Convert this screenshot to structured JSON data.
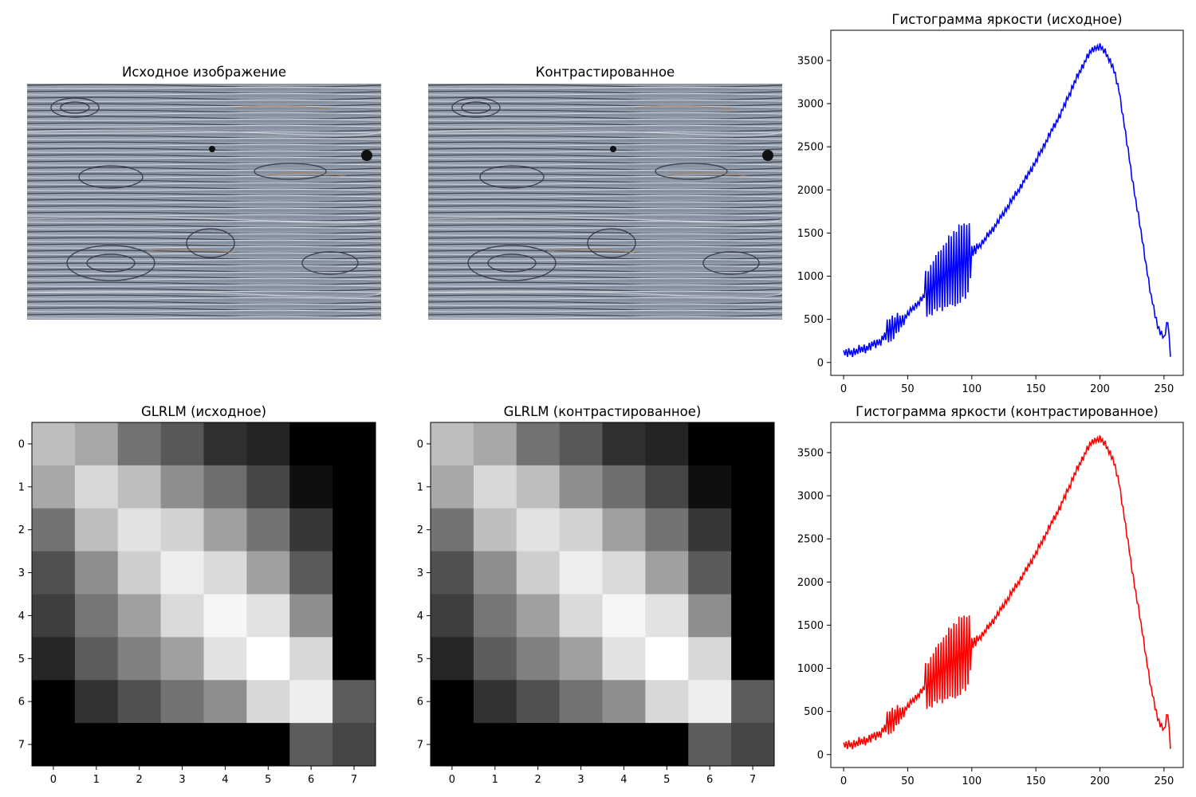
{
  "panels": {
    "img_original": {
      "title": "Исходное изображение"
    },
    "img_contrast": {
      "title": "Контрастированное"
    }
  },
  "chart_data": [
    {
      "type": "line",
      "title": "Гистограмма яркости (исходное)",
      "color": "#0000ff",
      "xlabel": "",
      "ylabel": "",
      "xlim": [
        -10,
        265
      ],
      "ylim": [
        -150,
        3850
      ],
      "xticks": [
        0,
        50,
        100,
        150,
        200,
        250
      ],
      "yticks": [
        0,
        500,
        1000,
        1500,
        2000,
        2500,
        3000,
        3500
      ],
      "grid": false,
      "series": [
        {
          "anchors_x": [
            0,
            10,
            20,
            30,
            35,
            40,
            45,
            50,
            55,
            60,
            65,
            70,
            75,
            80,
            85,
            90,
            95,
            100,
            105,
            110,
            120,
            130,
            140,
            150,
            160,
            170,
            180,
            190,
            195,
            200,
            205,
            210,
            215,
            220,
            225,
            230,
            235,
            240,
            245,
            250,
            253,
            255
          ],
          "anchors_y": [
            100,
            130,
            180,
            260,
            380,
            420,
            470,
            560,
            640,
            720,
            800,
            880,
            960,
            1020,
            1080,
            1130,
            1180,
            1260,
            1340,
            1420,
            1620,
            1850,
            2080,
            2330,
            2620,
            2900,
            3240,
            3540,
            3640,
            3660,
            3580,
            3430,
            3150,
            2650,
            2150,
            1700,
            1230,
            760,
            420,
            280,
            480,
            100
          ],
          "amplitude_x": [
            0,
            8,
            15,
            25,
            32,
            35,
            40,
            45,
            48,
            55,
            63,
            64,
            70,
            80,
            90,
            98,
            100,
            105,
            255
          ],
          "amplitude_y": [
            40,
            40,
            40,
            40,
            40,
            150,
            120,
            80,
            30,
            30,
            30,
            250,
            300,
            380,
            450,
            400,
            80,
            30,
            30
          ]
        }
      ]
    },
    {
      "type": "heatmap",
      "title": "GLRLM (исходное)",
      "xticks": [
        0,
        1,
        2,
        3,
        4,
        5,
        6,
        7
      ],
      "yticks": [
        0,
        1,
        2,
        3,
        4,
        5,
        6,
        7
      ],
      "colormap": "gray",
      "values": [
        [
          190,
          168,
          115,
          88,
          48,
          36,
          0,
          0
        ],
        [
          168,
          216,
          190,
          142,
          110,
          70,
          15,
          0
        ],
        [
          115,
          190,
          226,
          210,
          160,
          115,
          55,
          0
        ],
        [
          80,
          142,
          206,
          238,
          218,
          160,
          90,
          0
        ],
        [
          62,
          118,
          160,
          218,
          246,
          226,
          142,
          0
        ],
        [
          38,
          92,
          128,
          160,
          226,
          255,
          216,
          0
        ],
        [
          0,
          50,
          80,
          115,
          142,
          216,
          238,
          92
        ],
        [
          0,
          0,
          0,
          0,
          0,
          0,
          92,
          70
        ]
      ]
    },
    {
      "type": "heatmap",
      "title": "GLRLM (контрастированное)",
      "xticks": [
        0,
        1,
        2,
        3,
        4,
        5,
        6,
        7
      ],
      "yticks": [
        0,
        1,
        2,
        3,
        4,
        5,
        6,
        7
      ],
      "colormap": "gray",
      "values": [
        [
          190,
          168,
          115,
          88,
          48,
          36,
          0,
          0
        ],
        [
          168,
          216,
          190,
          142,
          110,
          70,
          15,
          0
        ],
        [
          115,
          190,
          226,
          210,
          160,
          115,
          55,
          0
        ],
        [
          80,
          142,
          206,
          238,
          218,
          160,
          90,
          0
        ],
        [
          62,
          118,
          160,
          218,
          246,
          226,
          142,
          0
        ],
        [
          38,
          92,
          128,
          160,
          226,
          255,
          216,
          0
        ],
        [
          0,
          50,
          80,
          115,
          142,
          216,
          238,
          92
        ],
        [
          0,
          0,
          0,
          0,
          0,
          0,
          92,
          70
        ]
      ]
    },
    {
      "type": "line",
      "title": "Гистограмма яркости (контрастированное)",
      "color": "#ff0000",
      "xlabel": "",
      "ylabel": "",
      "xlim": [
        -10,
        265
      ],
      "ylim": [
        -150,
        3850
      ],
      "xticks": [
        0,
        50,
        100,
        150,
        200,
        250
      ],
      "yticks": [
        0,
        500,
        1000,
        1500,
        2000,
        2500,
        3000,
        3500
      ],
      "grid": false,
      "series": [
        {
          "anchors_x": [
            0,
            10,
            20,
            30,
            35,
            40,
            45,
            50,
            55,
            60,
            65,
            70,
            75,
            80,
            85,
            90,
            95,
            100,
            105,
            110,
            120,
            130,
            140,
            150,
            160,
            170,
            180,
            190,
            195,
            200,
            205,
            210,
            215,
            220,
            225,
            230,
            235,
            240,
            245,
            250,
            253,
            255
          ],
          "anchors_y": [
            100,
            130,
            180,
            260,
            380,
            420,
            470,
            560,
            640,
            720,
            800,
            880,
            960,
            1020,
            1080,
            1130,
            1180,
            1260,
            1340,
            1420,
            1620,
            1850,
            2080,
            2330,
            2620,
            2900,
            3240,
            3540,
            3640,
            3660,
            3580,
            3430,
            3150,
            2650,
            2150,
            1700,
            1230,
            760,
            420,
            280,
            480,
            100
          ],
          "amplitude_x": [
            0,
            8,
            15,
            25,
            32,
            35,
            40,
            45,
            48,
            55,
            63,
            64,
            70,
            80,
            90,
            98,
            100,
            105,
            255
          ],
          "amplitude_y": [
            40,
            40,
            40,
            40,
            40,
            150,
            120,
            80,
            30,
            30,
            30,
            250,
            300,
            380,
            450,
            400,
            80,
            30,
            30
          ]
        }
      ]
    }
  ]
}
